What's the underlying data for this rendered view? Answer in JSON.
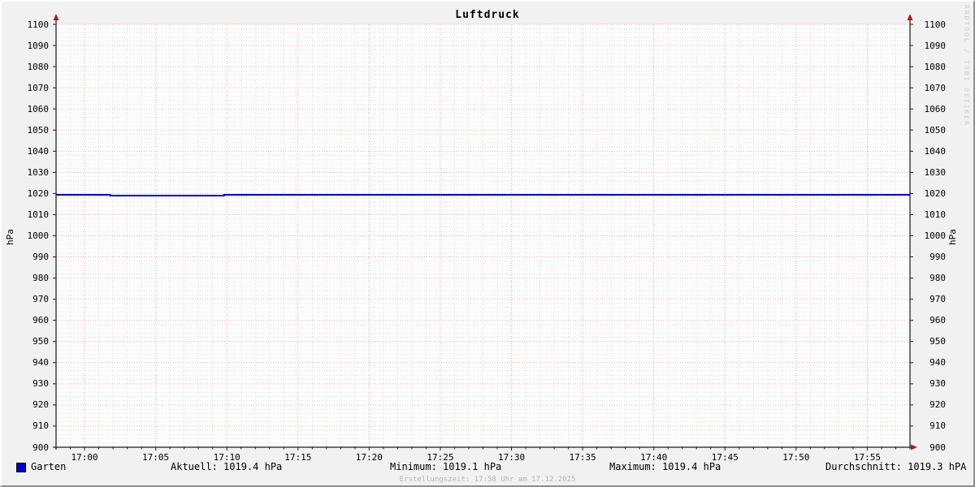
{
  "title": "Luftdruck",
  "watermark": "RRDTOOL / TOBI OETIKER",
  "footer": {
    "created": "Erstellungszeit: 17:58 Uhr am 17.12.2025"
  },
  "legend": {
    "series_label": "Garten",
    "series_color": "#0000cc",
    "stats": [
      {
        "key": "aktuell",
        "text": "Aktuell: 1019.4 hPa"
      },
      {
        "key": "minimum",
        "text": "Minimum: 1019.1 hPa"
      },
      {
        "key": "maximum",
        "text": "Maximum: 1019.4 hPa"
      },
      {
        "key": "durchschnitt",
        "text": "Durchschnitt: 1019.3 hPA"
      }
    ]
  },
  "axis": {
    "ylabel_left": "hPa",
    "ylabel_right": "hPa"
  },
  "chart_data": {
    "type": "line",
    "title": "Luftdruck",
    "ylabel": "hPa",
    "ylim": [
      900,
      1100
    ],
    "y_major_step": 10,
    "y_minor_step": 2,
    "x_window": [
      "16:58",
      "17:58"
    ],
    "x_total_minutes": 60,
    "x_first_major_offset_min": 2,
    "x_major_step_min": 5,
    "x_minor_step_min": 1,
    "x_tick_labels": [
      "17:00",
      "17:05",
      "17:10",
      "17:15",
      "17:20",
      "17:25",
      "17:30",
      "17:35",
      "17:40",
      "17:45",
      "17:50",
      "17:55"
    ],
    "grid": true,
    "legend_position": "bottom",
    "series": [
      {
        "name": "Garten",
        "color": "#0000bb",
        "points_min_value": [
          [
            0,
            1019.4
          ],
          [
            3.8,
            1019.4
          ],
          [
            3.8,
            1019.1
          ],
          [
            11.8,
            1019.1
          ],
          [
            11.8,
            1019.4
          ],
          [
            60,
            1019.4
          ]
        ]
      }
    ],
    "stats": {
      "aktuell": 1019.4,
      "minimum": 1019.1,
      "maximum": 1019.4,
      "durchschnitt": 1019.3
    },
    "colors": {
      "major_grid": "#f2a4a4",
      "minor_grid": "#d9d9d9",
      "axis": "#1a1a1a",
      "arrow": "#a52019",
      "plot_background": "#ffffff",
      "canvas_background": "#f1f1f1"
    }
  }
}
